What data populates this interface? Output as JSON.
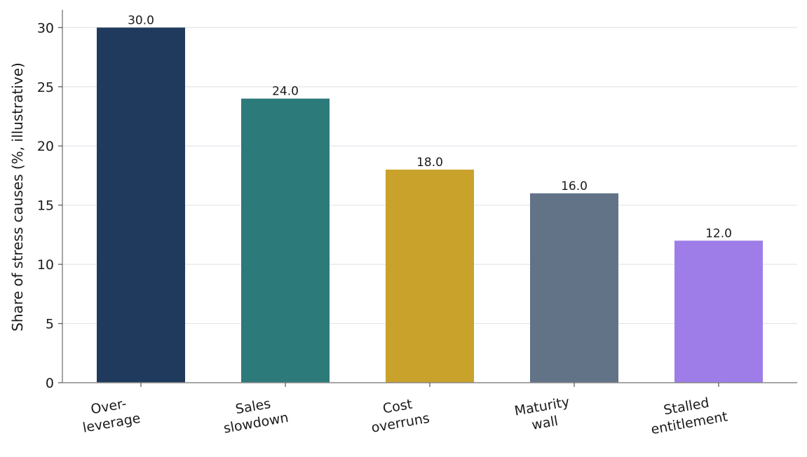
{
  "chart_data": {
    "type": "bar",
    "title": "",
    "xlabel": "",
    "ylabel": "Share of stress causes (%, illustrative)",
    "ylim": [
      0,
      31.5
    ],
    "yticks": [
      0,
      5,
      10,
      15,
      20,
      25,
      30
    ],
    "grid": "horizontal",
    "categories": [
      [
        "Over-",
        "leverage"
      ],
      [
        "Sales",
        "slowdown"
      ],
      [
        "Cost",
        "overruns"
      ],
      [
        "Maturity",
        "wall"
      ],
      [
        "Stalled",
        "entitlement"
      ]
    ],
    "values": [
      30.0,
      24.0,
      18.0,
      16.0,
      12.0
    ],
    "value_labels": [
      "30.0",
      "24.0",
      "18.0",
      "16.0",
      "12.0"
    ],
    "colors": [
      "#1f3a5c",
      "#2d7a7b",
      "#c9a22b",
      "#627388",
      "#9e7de9"
    ]
  }
}
